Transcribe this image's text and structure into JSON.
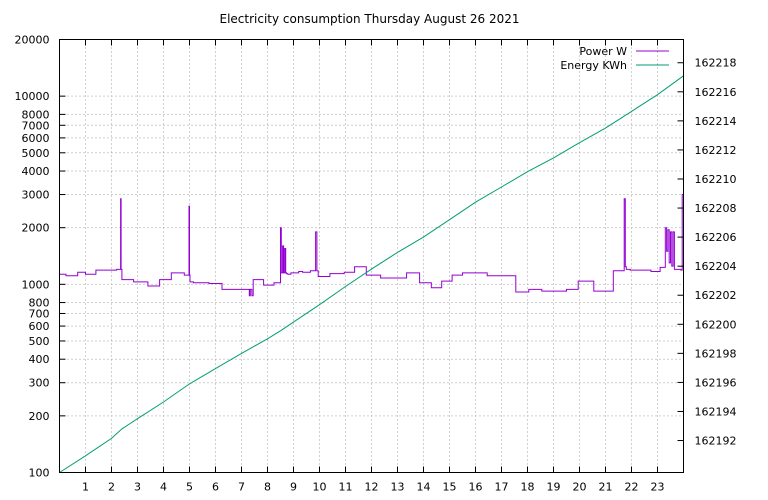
{
  "chart_data": {
    "type": "line",
    "title": "Electricity consumption Thursday August 26 2021",
    "xlabel": "",
    "ylabel": "",
    "y2label": "",
    "xlim": [
      0,
      24
    ],
    "x_ticks": [
      1,
      2,
      3,
      4,
      5,
      6,
      7,
      8,
      9,
      10,
      11,
      12,
      13,
      14,
      15,
      16,
      17,
      18,
      19,
      20,
      21,
      22,
      23
    ],
    "ylim": [
      100,
      20000
    ],
    "yscale": "log",
    "y_ticks": [
      100,
      200,
      300,
      400,
      500,
      600,
      700,
      800,
      1000,
      2000,
      3000,
      4000,
      5000,
      6000,
      7000,
      8000,
      10000,
      20000
    ],
    "y2lim": [
      162189.8,
      162219.6
    ],
    "y2_ticks": [
      162192,
      162194,
      162196,
      162198,
      162200,
      162202,
      162204,
      162206,
      162208,
      162210,
      162212,
      162214,
      162216,
      162218
    ],
    "grid": true,
    "legend_position": "top-right",
    "colors": {
      "power": "#9400d3",
      "energy": "#009e73"
    },
    "series": [
      {
        "name": "Power W",
        "axis": "left",
        "style": "steps",
        "x": [
          0,
          0.25,
          0.7,
          1.0,
          1.4,
          2.2,
          2.35,
          2.37,
          2.4,
          2.85,
          3.4,
          3.85,
          4.3,
          4.8,
          4.98,
          5.0,
          5.02,
          5.15,
          5.75,
          6.25,
          7.3,
          7.34,
          7.4,
          7.45,
          7.85,
          8.25,
          8.5,
          8.53,
          8.58,
          8.62,
          8.66,
          8.7,
          8.73,
          8.78,
          8.9,
          9.2,
          9.35,
          9.65,
          9.85,
          9.9,
          9.95,
          10.4,
          10.95,
          11.35,
          11.8,
          12.35,
          12.95,
          13.35,
          13.85,
          14.3,
          14.7,
          15.1,
          15.5,
          16.45,
          17.55,
          18.05,
          18.55,
          19.5,
          19.95,
          20.55,
          21.3,
          21.72,
          21.76,
          21.8,
          21.95,
          22.75,
          23.1,
          23.3,
          23.35,
          23.4,
          23.45,
          23.5,
          23.55,
          23.6,
          23.65,
          23.9,
          23.95,
          24.0
        ],
        "y": [
          1130,
          1110,
          1160,
          1130,
          1190,
          1200,
          2850,
          1200,
          1060,
          1030,
          980,
          1060,
          1150,
          1120,
          2600,
          1120,
          1030,
          1020,
          1010,
          940,
          870,
          940,
          870,
          1060,
          990,
          1020,
          2000,
          1150,
          1600,
          1150,
          1550,
          1150,
          1140,
          1130,
          1150,
          1170,
          1160,
          1180,
          1900,
          1180,
          1100,
          1140,
          1160,
          1240,
          1120,
          1080,
          1080,
          1150,
          1020,
          960,
          1040,
          1120,
          1150,
          1110,
          910,
          940,
          920,
          940,
          1040,
          920,
          1180,
          2850,
          1240,
          1200,
          1190,
          1170,
          1230,
          2000,
          1500,
          1950,
          1300,
          1900,
          1250,
          1900,
          1200,
          1190,
          3000,
          1180
        ]
      },
      {
        "name": "Energy KWh",
        "axis": "right",
        "style": "line",
        "x": [
          0,
          1,
          2,
          2.4,
          3,
          4,
          5,
          6,
          7,
          8,
          8.5,
          9,
          10,
          11,
          12,
          13,
          14,
          15,
          16,
          17,
          18,
          19,
          20,
          21,
          22,
          23,
          24
        ],
        "y": [
          162189.8,
          162190.95,
          162192.15,
          162192.8,
          162193.5,
          162194.65,
          162195.9,
          162196.95,
          162198.0,
          162199.0,
          162199.55,
          162200.15,
          162201.35,
          162202.6,
          162203.8,
          162204.95,
          162206.0,
          162207.2,
          162208.4,
          162209.45,
          162210.5,
          162211.45,
          162212.5,
          162213.5,
          162214.65,
          162215.8,
          162217.1
        ]
      }
    ]
  }
}
